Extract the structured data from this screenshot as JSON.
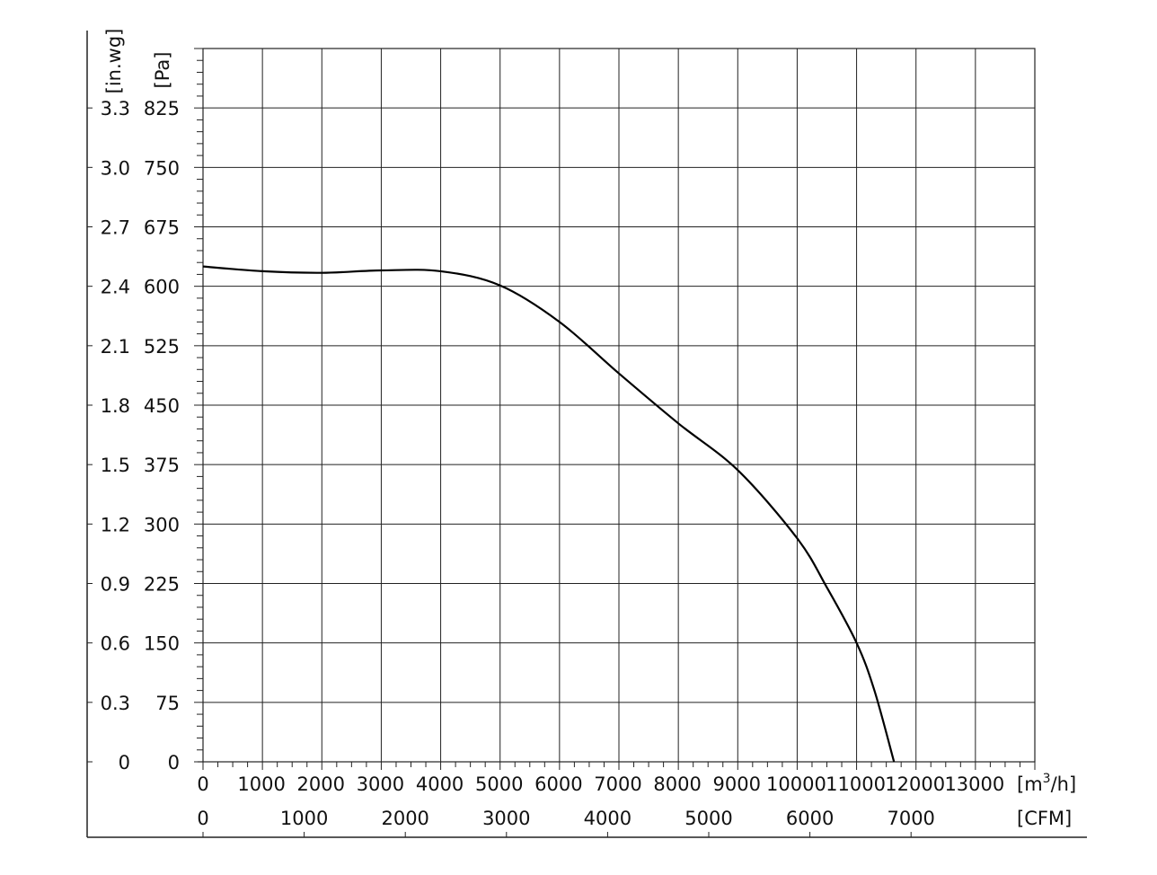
{
  "chart_data": {
    "type": "line",
    "title": "",
    "grid": true,
    "x_axis": {
      "unit_label": "[m³/h]",
      "unit_base": "[m",
      "unit_sup": "3",
      "unit_tail": "/h]",
      "range": [
        0,
        14000
      ],
      "ticks": [
        0,
        1000,
        2000,
        3000,
        4000,
        5000,
        6000,
        7000,
        8000,
        9000,
        10000,
        11000,
        12000,
        13000
      ],
      "tick_labels": [
        "0",
        "1000",
        "2000",
        "3000",
        "4000",
        "5000",
        "6000",
        "7000",
        "8000",
        "9000",
        "10000",
        "11000",
        "12000",
        "13000"
      ]
    },
    "x2_axis": {
      "unit_label": "[CFM]",
      "ticks": [
        0,
        1000,
        2000,
        3000,
        4000,
        5000,
        6000,
        7000
      ],
      "tick_labels": [
        "0",
        "1000",
        "2000",
        "3000",
        "4000",
        "5000",
        "6000",
        "7000"
      ]
    },
    "y_axis": {
      "unit_label": "[Pa]",
      "range": [
        0,
        900
      ],
      "ticks": [
        0,
        75,
        150,
        225,
        300,
        375,
        450,
        525,
        600,
        675,
        750,
        825
      ],
      "tick_labels": [
        "0",
        "75",
        "150",
        "225",
        "300",
        "375",
        "450",
        "525",
        "600",
        "675",
        "750",
        "825"
      ]
    },
    "y2_axis": {
      "unit_label": "[in.wg]",
      "tick_labels": [
        "0",
        "0.3",
        "0.6",
        "0.9",
        "1.2",
        "1.5",
        "1.8",
        "2.1",
        "2.4",
        "2.7",
        "3.0",
        "3.3"
      ]
    },
    "series": [
      {
        "color": "#000000",
        "x": [
          0,
          1000,
          2000,
          3000,
          4000,
          5000,
          6000,
          7000,
          8000,
          9000,
          10000,
          10500,
          11000,
          11300,
          11630
        ],
        "y": [
          625,
          619,
          617,
          620,
          619,
          601,
          555,
          490,
          427,
          368,
          282,
          220,
          150,
          90,
          0
        ]
      }
    ]
  }
}
